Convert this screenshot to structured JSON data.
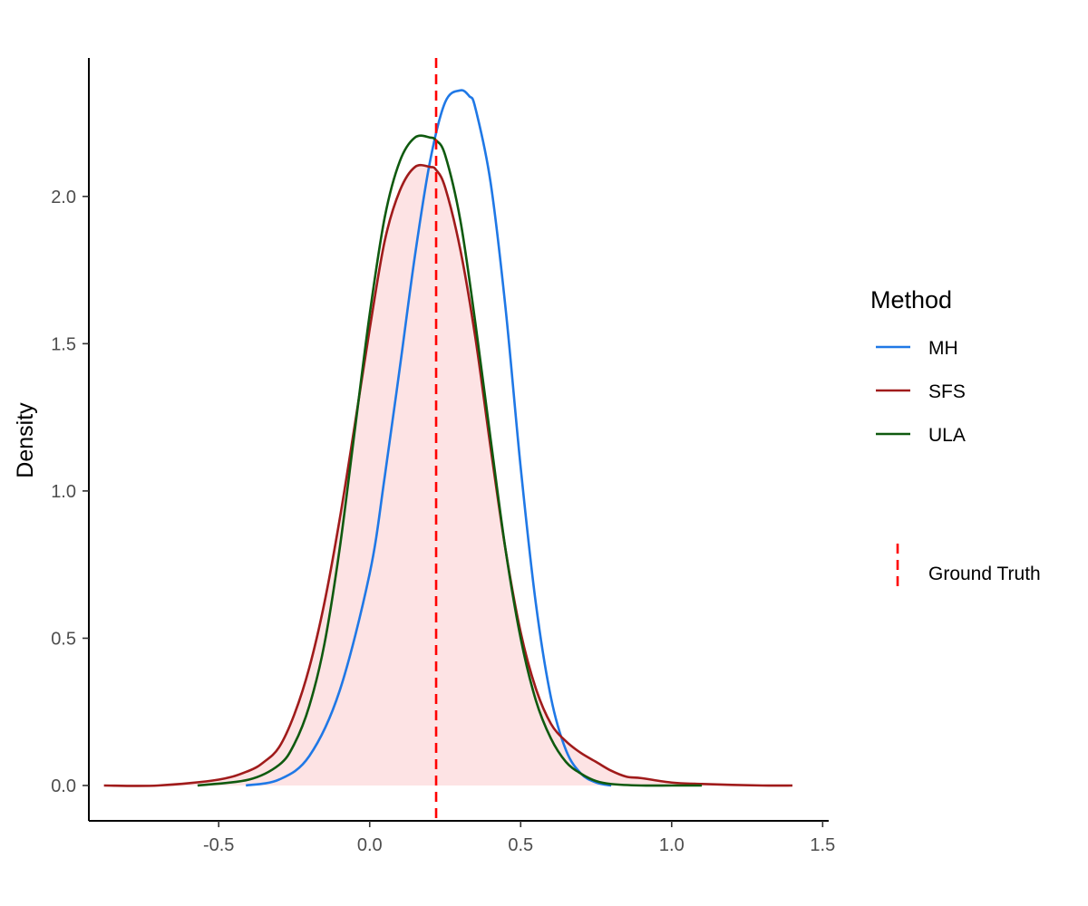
{
  "chart_data": {
    "type": "line",
    "title": "",
    "xlabel": "",
    "ylabel": "Density",
    "xlim": [
      -0.93,
      1.52
    ],
    "ylim": [
      -0.12,
      2.47
    ],
    "x_ticks": [
      -0.5,
      0.0,
      0.5,
      1.0,
      1.5
    ],
    "x_tick_labels": [
      "-0.5",
      "0.0",
      "0.5",
      "1.0",
      "1.5"
    ],
    "y_ticks": [
      0.0,
      0.5,
      1.0,
      1.5,
      2.0
    ],
    "y_tick_labels": [
      "0.0",
      "0.5",
      "1.0",
      "1.5",
      "2.0"
    ],
    "grid": false,
    "legend_title": "Method",
    "legend_position": "right",
    "series": [
      {
        "name": "MH",
        "color": "#1f78e6",
        "x": [
          -0.41,
          -0.3,
          -0.2,
          -0.1,
          0.0,
          0.05,
          0.1,
          0.15,
          0.2,
          0.25,
          0.3,
          0.33,
          0.35,
          0.4,
          0.45,
          0.5,
          0.55,
          0.6,
          0.65,
          0.7,
          0.75,
          0.8
        ],
        "y": [
          0.0,
          0.02,
          0.1,
          0.32,
          0.72,
          1.05,
          1.42,
          1.8,
          2.12,
          2.32,
          2.36,
          2.34,
          2.3,
          2.05,
          1.62,
          1.08,
          0.62,
          0.3,
          0.12,
          0.04,
          0.01,
          0.0
        ]
      },
      {
        "name": "SFS",
        "color": "#a01b1b",
        "fill": "#fde3e4",
        "x": [
          -0.88,
          -0.7,
          -0.5,
          -0.4,
          -0.35,
          -0.3,
          -0.25,
          -0.2,
          -0.15,
          -0.1,
          -0.05,
          0.0,
          0.05,
          0.1,
          0.15,
          0.2,
          0.22,
          0.25,
          0.3,
          0.35,
          0.4,
          0.45,
          0.5,
          0.55,
          0.6,
          0.65,
          0.7,
          0.75,
          0.8,
          0.85,
          0.9,
          1.0,
          1.1,
          1.3,
          1.4
        ],
        "y": [
          0.0,
          0.0,
          0.02,
          0.05,
          0.08,
          0.13,
          0.24,
          0.4,
          0.62,
          0.9,
          1.22,
          1.55,
          1.85,
          2.02,
          2.1,
          2.1,
          2.09,
          2.03,
          1.82,
          1.52,
          1.15,
          0.8,
          0.52,
          0.33,
          0.21,
          0.15,
          0.11,
          0.08,
          0.05,
          0.03,
          0.025,
          0.01,
          0.005,
          0.0,
          0.0
        ]
      },
      {
        "name": "ULA",
        "color": "#0f5a0f",
        "x": [
          -0.57,
          -0.4,
          -0.3,
          -0.25,
          -0.2,
          -0.15,
          -0.1,
          -0.05,
          0.0,
          0.05,
          0.1,
          0.15,
          0.2,
          0.22,
          0.25,
          0.3,
          0.35,
          0.4,
          0.45,
          0.5,
          0.55,
          0.6,
          0.65,
          0.7,
          0.75,
          0.8,
          0.9,
          1.0,
          1.1
        ],
        "y": [
          0.0,
          0.02,
          0.07,
          0.14,
          0.27,
          0.48,
          0.8,
          1.2,
          1.6,
          1.93,
          2.12,
          2.2,
          2.2,
          2.19,
          2.14,
          1.92,
          1.57,
          1.18,
          0.8,
          0.5,
          0.29,
          0.16,
          0.08,
          0.04,
          0.015,
          0.005,
          0.0,
          0.0,
          0.0
        ]
      }
    ],
    "reference_line": {
      "name": "Ground Truth",
      "x": 0.22,
      "color": "#ff0000",
      "style": "dashed"
    }
  }
}
